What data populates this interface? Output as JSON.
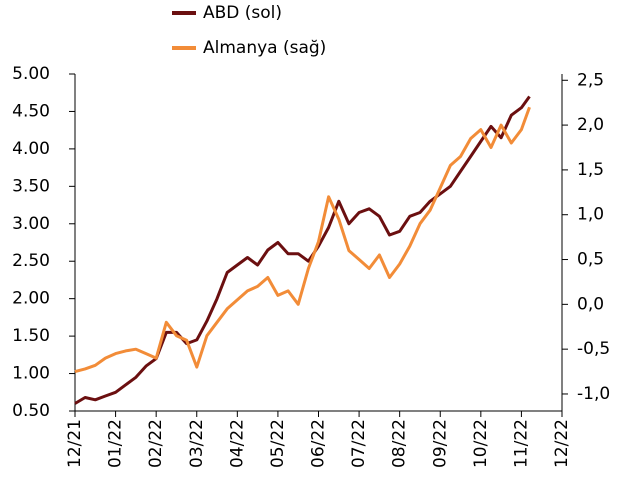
{
  "chart_data": {
    "type": "line",
    "legend": "top",
    "x": [
      0,
      0.25,
      0.5,
      0.75,
      1,
      1.25,
      1.5,
      1.75,
      2,
      2.25,
      2.5,
      2.75,
      3,
      3.25,
      3.5,
      3.75,
      4,
      4.25,
      4.5,
      4.75,
      5,
      5.25,
      5.5,
      5.75,
      6,
      6.25,
      6.5,
      6.75,
      7,
      7.25,
      7.5,
      7.75,
      8,
      8.25,
      8.5,
      8.75,
      9,
      9.25,
      9.5,
      9.75,
      10,
      10.25,
      10.5,
      10.75,
      11,
      11.2
    ],
    "xlim": [
      0,
      12
    ],
    "xticks": [
      {
        "value": 0,
        "label": "12/21"
      },
      {
        "value": 1,
        "label": "01/22"
      },
      {
        "value": 2,
        "label": "02/22"
      },
      {
        "value": 3,
        "label": "03/22"
      },
      {
        "value": 4,
        "label": "04/22"
      },
      {
        "value": 5,
        "label": "05/22"
      },
      {
        "value": 6,
        "label": "06/22"
      },
      {
        "value": 7,
        "label": "07/22"
      },
      {
        "value": 8,
        "label": "08/22"
      },
      {
        "value": 9,
        "label": "09/22"
      },
      {
        "value": 10,
        "label": "10/22"
      },
      {
        "value": 11,
        "label": "11/22"
      },
      {
        "value": 12,
        "label": "12/22"
      }
    ],
    "ylim": [
      0.5,
      5.0
    ],
    "yticks": [
      {
        "value": 0.5,
        "label": "0.50"
      },
      {
        "value": 1.0,
        "label": "1.00"
      },
      {
        "value": 1.5,
        "label": "1.50"
      },
      {
        "value": 2.0,
        "label": "2.00"
      },
      {
        "value": 2.5,
        "label": "2.50"
      },
      {
        "value": 3.0,
        "label": "3.00"
      },
      {
        "value": 3.5,
        "label": "3.50"
      },
      {
        "value": 4.0,
        "label": "4.00"
      },
      {
        "value": 4.5,
        "label": "4.50"
      },
      {
        "value": 5.0,
        "label": "5.00"
      }
    ],
    "y2lim": [
      -1.19,
      2.57
    ],
    "y2ticks": [
      {
        "value": -1.0,
        "label": "-1,0"
      },
      {
        "value": -0.5,
        "label": "-0,5"
      },
      {
        "value": 0.0,
        "label": "0,0"
      },
      {
        "value": 0.5,
        "label": "0,5"
      },
      {
        "value": 1.0,
        "label": "1,0"
      },
      {
        "value": 1.5,
        "label": "1,5"
      },
      {
        "value": 2.0,
        "label": "2,0"
      },
      {
        "value": 2.5,
        "label": "2,5"
      }
    ],
    "series": [
      {
        "name": "ABD (sol)",
        "color": "#6b0f10",
        "values": [
          0.6,
          0.68,
          0.65,
          0.7,
          0.75,
          0.85,
          0.95,
          1.1,
          1.2,
          1.55,
          1.55,
          1.4,
          1.45,
          1.7,
          2.0,
          2.35,
          2.45,
          2.55,
          2.45,
          2.65,
          2.75,
          2.6,
          2.6,
          2.5,
          2.7,
          2.95,
          3.3,
          3.0,
          3.15,
          3.2,
          3.1,
          2.85,
          2.9,
          3.1,
          3.15,
          3.3,
          3.4,
          3.5,
          3.7,
          3.9,
          4.1,
          4.3,
          4.15,
          4.45,
          4.55,
          4.7
        ]
      },
      {
        "name": "Almanya (sağ)",
        "color": "#f28c38",
        "axis": "y2",
        "values": [
          -0.75,
          -0.72,
          -0.68,
          -0.6,
          -0.55,
          -0.52,
          -0.5,
          -0.55,
          -0.6,
          -0.2,
          -0.35,
          -0.4,
          -0.7,
          -0.35,
          -0.2,
          -0.05,
          0.05,
          0.15,
          0.2,
          0.3,
          0.1,
          0.15,
          0.0,
          0.4,
          0.7,
          1.2,
          0.95,
          0.6,
          0.5,
          0.4,
          0.55,
          0.3,
          0.45,
          0.65,
          0.9,
          1.05,
          1.3,
          1.55,
          1.65,
          1.85,
          1.95,
          1.75,
          2.0,
          1.8,
          1.95,
          2.2
        ]
      }
    ]
  }
}
